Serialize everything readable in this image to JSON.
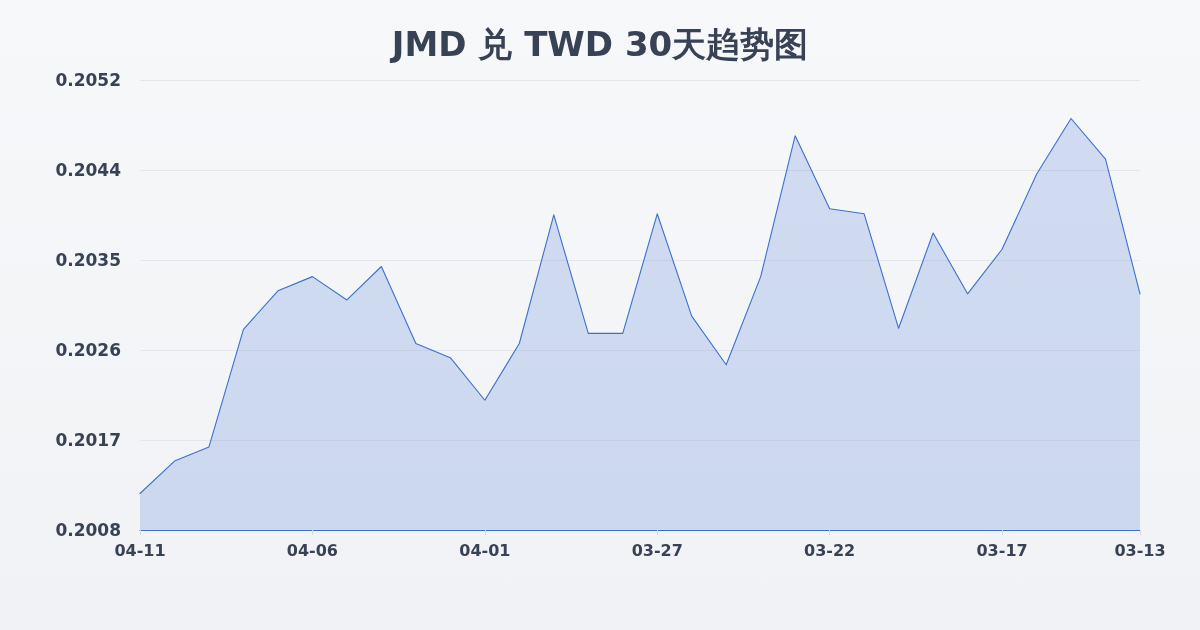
{
  "chart_data": {
    "type": "area",
    "title": "JMD 兑 TWD 30天趋势图",
    "categories": [
      "04-11",
      null,
      null,
      null,
      null,
      "04-06",
      null,
      null,
      null,
      null,
      "04-01",
      null,
      null,
      null,
      null,
      "03-27",
      null,
      null,
      null,
      null,
      "03-22",
      null,
      null,
      null,
      null,
      "03-17",
      null,
      null,
      null,
      "03-13"
    ],
    "values": [
      0.20116,
      0.20148,
      0.20162,
      0.20278,
      0.20316,
      0.2033,
      0.20307,
      0.2034,
      0.20264,
      0.2025,
      0.20208,
      0.20264,
      0.20391,
      0.20274,
      0.20274,
      0.20392,
      0.20291,
      0.20243,
      0.2033,
      0.20469,
      0.20397,
      0.20392,
      0.20279,
      0.20373,
      0.20313,
      0.20357,
      0.20431,
      0.20486,
      0.20446,
      0.20313
    ],
    "color": "#3d6fd0",
    "ylim": [
      0.2008,
      0.20524
    ],
    "yticks": [
      0.2008,
      {
        "value": 0.201688,
        "label": "0.2017"
      },
      {
        "value": 0.202576,
        "label": "0.2026"
      },
      {
        "value": 0.203464,
        "label": "0.2035"
      },
      {
        "value": 0.204352,
        "label": "0.2044"
      },
      {
        "value": 0.20524,
        "label": "0.2052"
      }
    ],
    "grid": "y",
    "marker": "none",
    "line_style": "solid"
  }
}
